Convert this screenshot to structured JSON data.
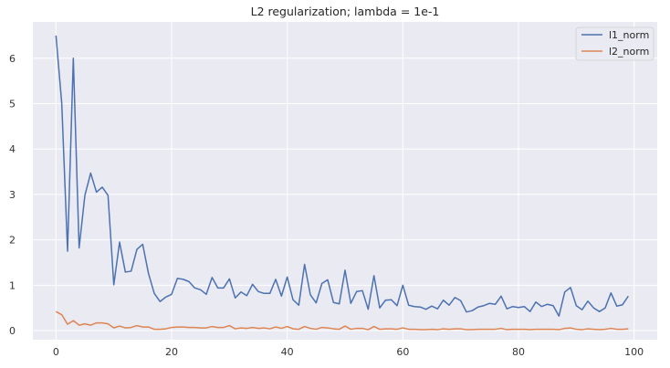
{
  "chart_data": {
    "type": "line",
    "title": "L2 regularization; lambda = 1e-1",
    "xlabel": "",
    "ylabel": "",
    "xlim": [
      -4,
      104
    ],
    "ylim": [
      -0.2,
      6.8
    ],
    "x_ticks": [
      0,
      20,
      40,
      60,
      80,
      100
    ],
    "y_ticks": [
      0,
      1,
      2,
      3,
      4,
      5,
      6
    ],
    "grid": true,
    "legend_position": "top-right",
    "x": [
      0,
      1,
      2,
      3,
      4,
      5,
      6,
      7,
      8,
      9,
      10,
      11,
      12,
      13,
      14,
      15,
      16,
      17,
      18,
      19,
      20,
      21,
      22,
      23,
      24,
      25,
      26,
      27,
      28,
      29,
      30,
      31,
      32,
      33,
      34,
      35,
      36,
      37,
      38,
      39,
      40,
      41,
      42,
      43,
      44,
      45,
      46,
      47,
      48,
      49,
      50,
      51,
      52,
      53,
      54,
      55,
      56,
      57,
      58,
      59,
      60,
      61,
      62,
      63,
      64,
      65,
      66,
      67,
      68,
      69,
      70,
      71,
      72,
      73,
      74,
      75,
      76,
      77,
      78,
      79,
      80,
      81,
      82,
      83,
      84,
      85,
      86,
      87,
      88,
      89,
      90,
      91,
      92,
      93,
      94,
      95,
      96,
      97,
      98,
      99
    ],
    "series": [
      {
        "name": "l1_norm",
        "color": "#4c72b0",
        "values": [
          6.5,
          5.0,
          1.75,
          6.0,
          1.82,
          2.98,
          3.47,
          3.05,
          3.16,
          2.98,
          1.01,
          1.95,
          1.29,
          1.31,
          1.79,
          1.9,
          1.26,
          0.82,
          0.64,
          0.74,
          0.8,
          1.15,
          1.13,
          1.08,
          0.94,
          0.9,
          0.8,
          1.17,
          0.94,
          0.94,
          1.14,
          0.72,
          0.85,
          0.77,
          1.02,
          0.86,
          0.82,
          0.82,
          1.13,
          0.76,
          1.18,
          0.68,
          0.56,
          1.46,
          0.79,
          0.61,
          1.04,
          1.12,
          0.62,
          0.59,
          1.33,
          0.6,
          0.86,
          0.88,
          0.47,
          1.21,
          0.5,
          0.67,
          0.68,
          0.55,
          1.0,
          0.56,
          0.53,
          0.52,
          0.47,
          0.54,
          0.48,
          0.67,
          0.56,
          0.73,
          0.66,
          0.41,
          0.44,
          0.52,
          0.55,
          0.6,
          0.58,
          0.76,
          0.48,
          0.53,
          0.51,
          0.53,
          0.42,
          0.63,
          0.53,
          0.58,
          0.55,
          0.32,
          0.85,
          0.95,
          0.55,
          0.46,
          0.65,
          0.5,
          0.42,
          0.5,
          0.83,
          0.54,
          0.57,
          0.76
        ]
      },
      {
        "name": "l2_norm",
        "color": "#dd8452",
        "values": [
          0.42,
          0.35,
          0.14,
          0.22,
          0.12,
          0.15,
          0.12,
          0.17,
          0.17,
          0.15,
          0.06,
          0.1,
          0.06,
          0.07,
          0.11,
          0.08,
          0.08,
          0.03,
          0.03,
          0.04,
          0.07,
          0.08,
          0.08,
          0.07,
          0.07,
          0.06,
          0.06,
          0.09,
          0.07,
          0.07,
          0.11,
          0.04,
          0.06,
          0.05,
          0.07,
          0.05,
          0.06,
          0.04,
          0.08,
          0.05,
          0.09,
          0.04,
          0.03,
          0.09,
          0.05,
          0.03,
          0.07,
          0.06,
          0.04,
          0.03,
          0.1,
          0.03,
          0.05,
          0.05,
          0.02,
          0.09,
          0.03,
          0.04,
          0.04,
          0.03,
          0.06,
          0.03,
          0.03,
          0.02,
          0.02,
          0.03,
          0.02,
          0.04,
          0.03,
          0.04,
          0.04,
          0.02,
          0.02,
          0.03,
          0.03,
          0.03,
          0.03,
          0.05,
          0.02,
          0.03,
          0.03,
          0.03,
          0.02,
          0.03,
          0.03,
          0.03,
          0.03,
          0.02,
          0.05,
          0.06,
          0.03,
          0.02,
          0.04,
          0.03,
          0.02,
          0.03,
          0.05,
          0.03,
          0.03,
          0.04
        ]
      }
    ]
  }
}
